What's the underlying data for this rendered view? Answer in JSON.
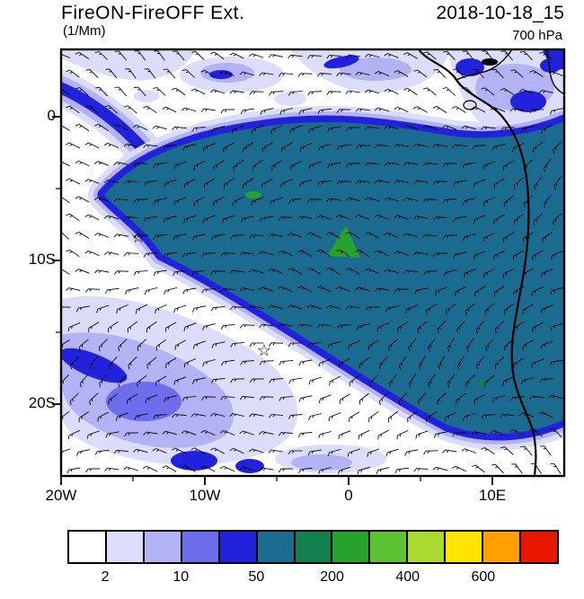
{
  "header": {
    "title": "FireON-FireOFF Ext.",
    "units": "(1/Mm)",
    "datetime": "2018-10-18_15",
    "level": "700 hPa"
  },
  "axes": {
    "y_ticks": [
      {
        "label": "0",
        "pos": 75
      },
      {
        "label": "10S",
        "pos": 235
      },
      {
        "label": "20S",
        "pos": 395
      }
    ],
    "y_minor": [
      155,
      315
    ],
    "x_ticks": [
      {
        "label": "20W",
        "pos": 0
      },
      {
        "label": "10W",
        "pos": 160
      },
      {
        "label": "0",
        "pos": 320
      },
      {
        "label": "10E",
        "pos": 480
      }
    ],
    "x_minor": [
      80,
      240,
      400
    ]
  },
  "colorbar": {
    "colors": [
      "#ffffff",
      "#dcdcfb",
      "#b2b2f4",
      "#6e6eec",
      "#2222dd",
      "#1b6a8f",
      "#12804f",
      "#28a22e",
      "#5ec332",
      "#a8da2f",
      "#ffe400",
      "#ffa000",
      "#ea1800"
    ],
    "ticks": [
      {
        "label": "2",
        "boundary": 1
      },
      {
        "label": "10",
        "boundary": 3
      },
      {
        "label": "50",
        "boundary": 5
      },
      {
        "label": "200",
        "boundary": 7
      },
      {
        "label": "400",
        "boundary": 9
      },
      {
        "label": "600",
        "boundary": 11
      }
    ]
  },
  "map": {
    "star_symbol": "☆",
    "wind_barb_color": "#000000",
    "coastline_color": "#000000"
  },
  "chart_data": {
    "type": "heatmap",
    "title": "FireON-FireOFF Ext.",
    "units": "1/Mm",
    "timestamp_label": "2018-10-18_15",
    "level_label": "700 hPa",
    "x_axis": {
      "tick_labels": [
        "20W",
        "10W",
        "0",
        "10E"
      ],
      "lon_range_deg": [
        -20,
        15
      ]
    },
    "y_axis": {
      "tick_labels": [
        "0",
        "10S",
        "20S"
      ],
      "lat_range_deg": [
        5,
        -25
      ]
    },
    "colorbar_labels": [
      "2",
      "10",
      "50",
      "200",
      "400",
      "600"
    ],
    "n_color_bins": 13,
    "overlays": [
      "wind-barbs",
      "african-coastline",
      "star-markers"
    ],
    "star_markers_approx": [
      {
        "lon": -14.3,
        "lat": -8.0
      },
      {
        "lon": -5.5,
        "lat": -16.0
      }
    ],
    "description": "Large dark blue-teal region (mid colorbar bins) of extinction difference covering the southeast Atlantic to the Angolan coast, edged by bright blue and pale lavender fringes; lavender patches along the top and in the southwest; small green maxima embedded near the center; wind barbs overlaid everywhere."
  }
}
